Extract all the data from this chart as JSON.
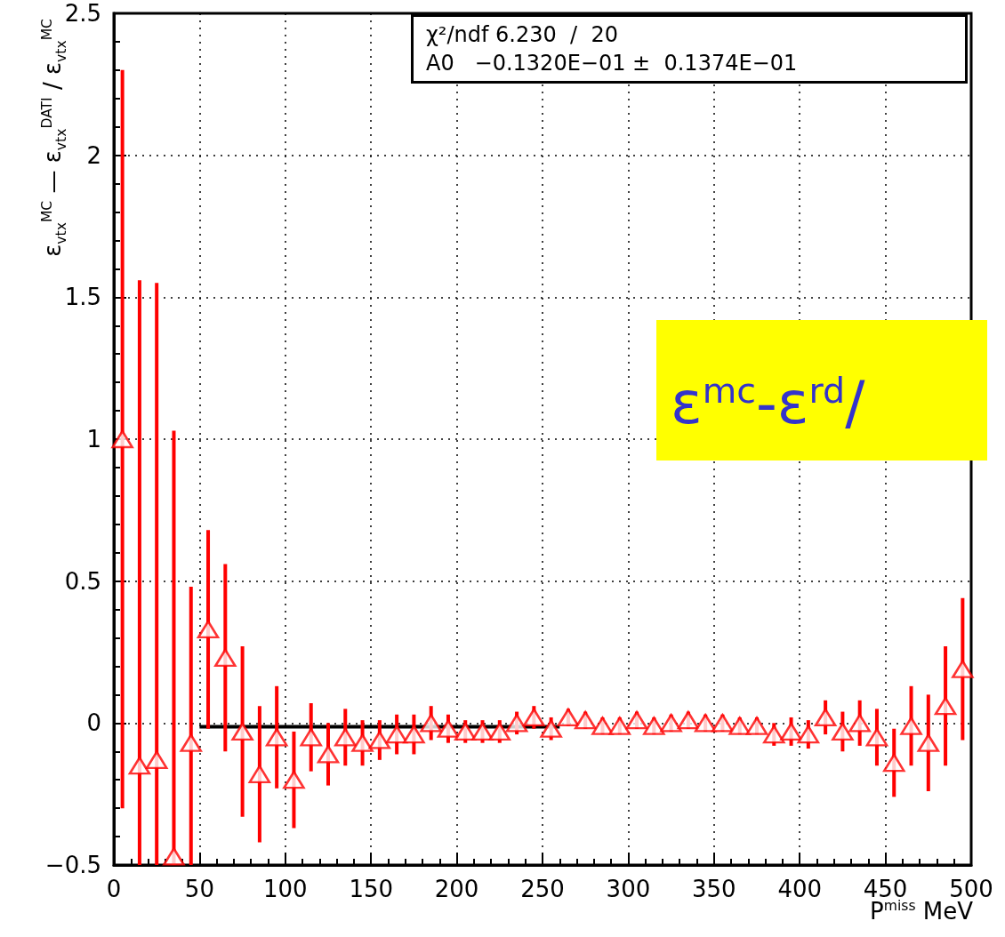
{
  "chart_data": {
    "type": "scatter",
    "xlabel": "P$^{miss}$ MeV",
    "ylabel": "ε$_{vtx}$$^{MC}$ — ε$_{vtx}$$^{DATI}$ / ε$_{vtx}$$^{MC}$",
    "xlim": [
      0,
      500
    ],
    "xticks": [
      0,
      50,
      100,
      150,
      200,
      250,
      300,
      350,
      400,
      450,
      500
    ],
    "ylim": [
      -0.5,
      2.5
    ],
    "yticks": [
      {
        "value": -0.5,
        "label": "−0.5"
      },
      0,
      0.5,
      1,
      1.5,
      2,
      2.5
    ],
    "grid": true,
    "annotations": [
      "χ²/ndf 6.230  /  20",
      "A0   −0.1320E−01 ±  0.1374E−01",
      "ε$^{mc}$-ε$^{rd}$/"
    ],
    "series": [
      {
        "color": "#ff0000",
        "marker": "triangle",
        "x": [
          5,
          15,
          25,
          35,
          45,
          55,
          65,
          75,
          85,
          95,
          105,
          115,
          125,
          135,
          145,
          155,
          165,
          175,
          185,
          195,
          205,
          215,
          225,
          235,
          245,
          255,
          265,
          275,
          285,
          295,
          305,
          315,
          325,
          335,
          345,
          355,
          365,
          375,
          385,
          395,
          405,
          415,
          425,
          435,
          445,
          455,
          465,
          475,
          485,
          495
        ],
        "values": [
          1.0,
          -0.15,
          -0.13,
          -0.47,
          -0.07,
          0.33,
          0.23,
          -0.03,
          -0.18,
          -0.05,
          -0.2,
          -0.05,
          -0.11,
          -0.05,
          -0.07,
          -0.06,
          -0.04,
          -0.04,
          0.0,
          -0.02,
          -0.03,
          -0.03,
          -0.03,
          0.0,
          0.02,
          -0.02,
          0.02,
          0.01,
          -0.01,
          -0.01,
          0.01,
          -0.01,
          0.0,
          0.01,
          0.0,
          0.0,
          -0.01,
          -0.01,
          -0.04,
          -0.03,
          -0.04,
          0.02,
          -0.03,
          0.0,
          -0.05,
          -0.14,
          -0.01,
          -0.07,
          0.06,
          0.19
        ],
        "errors": [
          1.3,
          [
            -0.5,
            1.56
          ],
          [
            -0.5,
            1.55
          ],
          [
            -0.5,
            1.03
          ],
          [
            -0.5,
            0.48
          ],
          0.35,
          0.33,
          0.3,
          0.24,
          0.18,
          0.17,
          0.12,
          0.11,
          0.1,
          0.08,
          0.07,
          0.07,
          0.07,
          0.06,
          0.05,
          0.04,
          0.04,
          0.04,
          0.04,
          0.04,
          0.04,
          0.03,
          0.03,
          0.03,
          0.03,
          0.03,
          0.03,
          0.03,
          0.03,
          0.03,
          0.03,
          0.03,
          0.03,
          0.04,
          0.05,
          0.05,
          0.06,
          0.07,
          0.08,
          0.1,
          0.12,
          0.14,
          0.17,
          0.21,
          0.25
        ]
      },
      {
        "type": "line",
        "color": "#000000",
        "marker": "none",
        "x": [
          50,
          260
        ],
        "values": [
          -0.013,
          -0.013
        ]
      }
    ]
  }
}
